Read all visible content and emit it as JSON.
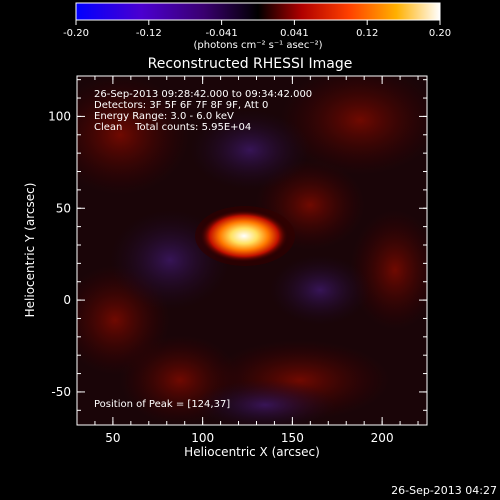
{
  "figure": {
    "title": "Reconstructed RHESSI Image",
    "info_lines": [
      "26-Sep-2013 09:28:42.000 to 09:34:42.000",
      "Detectors: 3F 5F 6F 7F 8F 9F, Att 0",
      "Energy Range: 3.0 - 6.0 keV",
      "Clean    Total counts: 5.95E+04"
    ],
    "peak_label": "Position of Peak = [124,37]",
    "footer_date": "26-Sep-2013 04:27",
    "xlabel": "Heliocentric X (arcsec)",
    "ylabel": "Heliocentric Y (arcsec)",
    "x_ticks": [
      "50",
      "100",
      "150",
      "200"
    ],
    "y_ticks": [
      "-50",
      "0",
      "50",
      "100"
    ]
  },
  "colorbar": {
    "unit_label": "(photons cm⁻² s⁻¹ asec⁻²)",
    "ticks": [
      "-0.20",
      "-0.12",
      "-0.041",
      "0.041",
      "0.12",
      "0.20"
    ],
    "range": [
      -0.2,
      0.2
    ]
  },
  "chart_data": {
    "type": "heatmap",
    "title": "Reconstructed RHESSI Image",
    "xlabel": "Heliocentric X (arcsec)",
    "ylabel": "Heliocentric Y (arcsec)",
    "xlim": [
      30,
      225
    ],
    "ylim": [
      -68,
      122
    ],
    "peak": [
      124,
      37
    ],
    "value_range": [
      -0.2,
      0.2
    ]
  },
  "colors": {
    "colormap": [
      "#0000ff",
      "#4b00d0",
      "#3a0070",
      "#000000",
      "#b00000",
      "#ff4000",
      "#ffb000",
      "#ffffff"
    ],
    "axes": "#ffffff",
    "background": "#000000"
  }
}
